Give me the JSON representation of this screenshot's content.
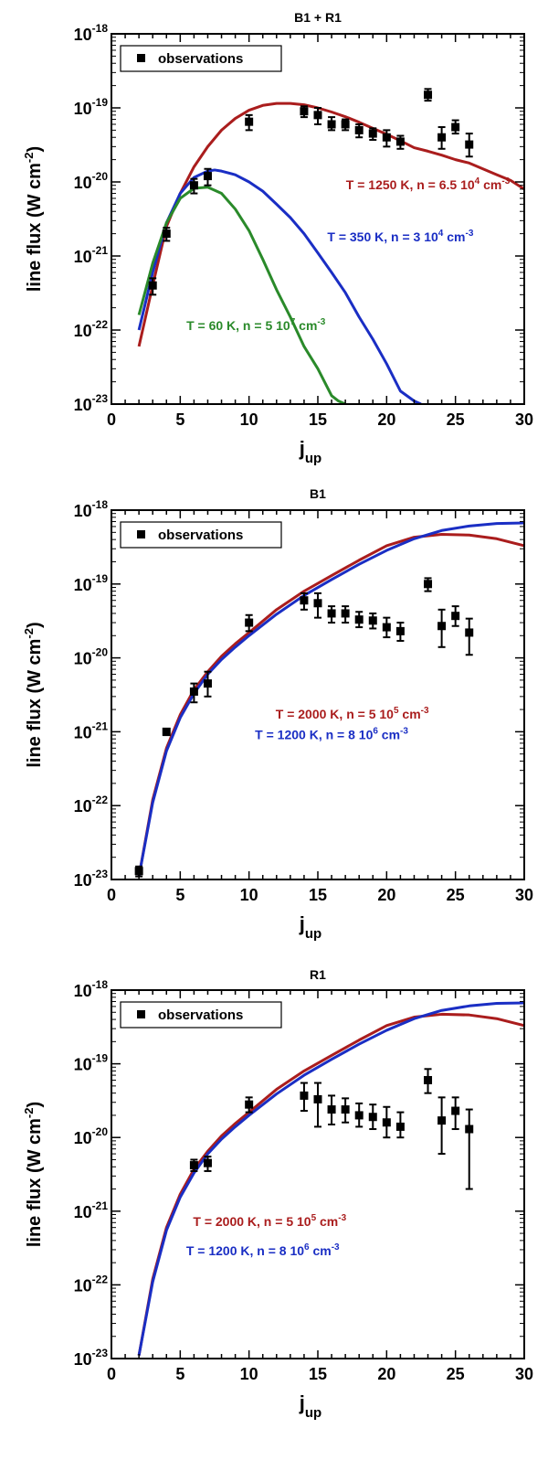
{
  "chart_data": [
    {
      "type": "line",
      "title": "B1 + R1",
      "xlabel": "j",
      "xlabel_sub": "up",
      "ylabel": "line flux (W cm",
      "ylabel_sup": "-2",
      "ylabel_end": ")",
      "xlim": [
        0,
        30
      ],
      "ylim_log10": [
        -23,
        -18
      ],
      "xticks": [
        "0",
        "5",
        "10",
        "15",
        "20",
        "25",
        "30"
      ],
      "ytick_mantissa": "10",
      "yticks": [
        "-18",
        "-19",
        "-20",
        "-21",
        "-22",
        "-23"
      ],
      "legend": {
        "label": "observations",
        "position": "top-left"
      },
      "observations": [
        {
          "x": 3,
          "y": 4e-22,
          "ylo": 3e-22,
          "yhi": 5e-22
        },
        {
          "x": 4,
          "y": 2e-21,
          "ylo": 1.6e-21,
          "yhi": 2.4e-21
        },
        {
          "x": 6,
          "y": 9e-21,
          "ylo": 7e-21,
          "yhi": 1.1e-20
        },
        {
          "x": 7,
          "y": 1.2e-20,
          "ylo": 9e-21,
          "yhi": 1.5e-20
        },
        {
          "x": 10,
          "y": 6.5e-20,
          "ylo": 5e-20,
          "yhi": 8e-20
        },
        {
          "x": 14,
          "y": 9e-20,
          "ylo": 7.5e-20,
          "yhi": 1.05e-19
        },
        {
          "x": 15,
          "y": 8e-20,
          "ylo": 6e-20,
          "yhi": 1e-19
        },
        {
          "x": 16,
          "y": 6e-20,
          "ylo": 5e-20,
          "yhi": 7.5e-20
        },
        {
          "x": 17,
          "y": 6e-20,
          "ylo": 5e-20,
          "yhi": 7e-20
        },
        {
          "x": 18,
          "y": 5e-20,
          "ylo": 4e-20,
          "yhi": 6e-20
        },
        {
          "x": 19,
          "y": 4.5e-20,
          "ylo": 3.7e-20,
          "yhi": 5.3e-20
        },
        {
          "x": 20,
          "y": 4e-20,
          "ylo": 3e-20,
          "yhi": 5e-20
        },
        {
          "x": 21,
          "y": 3.5e-20,
          "ylo": 2.8e-20,
          "yhi": 4.2e-20
        },
        {
          "x": 23,
          "y": 1.5e-19,
          "ylo": 1.25e-19,
          "yhi": 1.8e-19
        },
        {
          "x": 24,
          "y": 4e-20,
          "ylo": 2.8e-20,
          "yhi": 5.5e-20
        },
        {
          "x": 25,
          "y": 5.5e-20,
          "ylo": 4.5e-20,
          "yhi": 6.8e-20
        },
        {
          "x": 26,
          "y": 3.2e-20,
          "ylo": 2.2e-20,
          "yhi": 4.5e-20
        }
      ],
      "series": [
        {
          "name": "T = 1250 K, n = 6.5 10^4 cm^-3",
          "color": "#aa1d1d",
          "x": [
            2,
            3,
            4,
            5,
            6,
            7,
            8,
            9,
            10,
            11,
            12,
            13,
            14,
            15,
            16,
            17,
            18,
            19,
            20,
            21,
            22,
            23,
            24,
            25,
            26,
            27,
            28,
            29,
            30
          ],
          "y": [
            6e-23,
            4e-22,
            2.5e-21,
            7e-21,
            1.6e-20,
            3e-20,
            5e-20,
            7.2e-20,
            9.3e-20,
            1.08e-19,
            1.15e-19,
            1.15e-19,
            1.1e-19,
            1e-19,
            8.8e-20,
            7.6e-20,
            6.4e-20,
            5.3e-20,
            4.4e-20,
            3.6e-20,
            2.9e-20,
            2.6e-20,
            2.3e-20,
            2e-20,
            1.8e-20,
            1.5e-20,
            1.25e-20,
            1.05e-20,
            8e-21
          ]
        },
        {
          "name": "T = 350 K, n = 3 10^4 cm^-3",
          "color": "#1a2ec4",
          "x": [
            2,
            3,
            4,
            5,
            6,
            7,
            7.5,
            8,
            9,
            10,
            11,
            12,
            13,
            14,
            15,
            16,
            17,
            18,
            19,
            20,
            21,
            22,
            22.5
          ],
          "y": [
            1e-22,
            6e-22,
            2.8e-21,
            7e-21,
            1.15e-20,
            1.4e-20,
            1.45e-20,
            1.4e-20,
            1.25e-20,
            1e-20,
            7.5e-21,
            5e-21,
            3.3e-21,
            2e-21,
            1.1e-21,
            6e-22,
            3.2e-22,
            1.5e-22,
            7.5e-23,
            3.5e-23,
            1.5e-23,
            1.1e-23,
            1e-23
          ]
        },
        {
          "name": "T = 60 K, n = 5 10^7 cm^-3",
          "color": "#2a8a2a",
          "x": [
            2,
            3,
            4,
            5,
            6,
            7,
            8,
            9,
            10,
            11,
            12,
            13,
            14,
            15,
            16,
            16.5,
            17
          ],
          "y": [
            1.6e-22,
            8e-22,
            2.8e-21,
            6e-21,
            8.2e-21,
            8.5e-21,
            7e-21,
            4.3e-21,
            2.2e-21,
            9e-22,
            3.5e-22,
            1.5e-22,
            6e-23,
            3e-23,
            1.3e-23,
            1.1e-23,
            1e-23
          ]
        }
      ],
      "series_labels": [
        {
          "base": "T = 1250 K, n = 6.5 10",
          "exp1": "4",
          "mid": " cm",
          "exp2": "-3",
          "color": "#aa1d1d",
          "x": 23,
          "logy": -20.1
        },
        {
          "base": "T = 350 K, n = 3 10",
          "exp1": "4",
          "mid": " cm",
          "exp2": "-3",
          "color": "#1a2ec4",
          "x": 21,
          "logy": -20.8
        },
        {
          "base": "T = 60 K, n = 5 10",
          "exp1": "7",
          "mid": " cm",
          "exp2": "-3",
          "color": "#2a8a2a",
          "x": 10.5,
          "logy": -22.0
        }
      ]
    },
    {
      "type": "line",
      "title": "B1",
      "xlabel": "j",
      "xlabel_sub": "up",
      "ylabel": "line flux (W cm",
      "ylabel_sup": "-2",
      "ylabel_end": ")",
      "xlim": [
        0,
        30
      ],
      "ylim_log10": [
        -23,
        -18
      ],
      "xticks": [
        "0",
        "5",
        "10",
        "15",
        "20",
        "25",
        "30"
      ],
      "ytick_mantissa": "10",
      "yticks": [
        "-18",
        "-19",
        "-20",
        "-21",
        "-22",
        "-23"
      ],
      "legend": {
        "label": "observations",
        "position": "top-left"
      },
      "observations": [
        {
          "x": 2,
          "y": 1.3e-23,
          "ylo": 1.1e-23,
          "yhi": 1.5e-23
        },
        {
          "x": 4,
          "y": 1e-21,
          "ylo": 9e-22,
          "yhi": 1.1e-21
        },
        {
          "x": 6,
          "y": 3.5e-21,
          "ylo": 2.5e-21,
          "yhi": 4.5e-21
        },
        {
          "x": 7,
          "y": 4.5e-21,
          "ylo": 3e-21,
          "yhi": 6.5e-21
        },
        {
          "x": 10,
          "y": 3e-20,
          "ylo": 2.3e-20,
          "yhi": 3.8e-20
        },
        {
          "x": 14,
          "y": 6e-20,
          "ylo": 4.5e-20,
          "yhi": 7.5e-20
        },
        {
          "x": 15,
          "y": 5.5e-20,
          "ylo": 3.5e-20,
          "yhi": 7.5e-20
        },
        {
          "x": 16,
          "y": 4e-20,
          "ylo": 3e-20,
          "yhi": 5e-20
        },
        {
          "x": 17,
          "y": 4e-20,
          "ylo": 3e-20,
          "yhi": 5e-20
        },
        {
          "x": 18,
          "y": 3.3e-20,
          "ylo": 2.6e-20,
          "yhi": 4.2e-20
        },
        {
          "x": 19,
          "y": 3.2e-20,
          "ylo": 2.5e-20,
          "yhi": 4e-20
        },
        {
          "x": 20,
          "y": 2.6e-20,
          "ylo": 1.9e-20,
          "yhi": 3.5e-20
        },
        {
          "x": 21,
          "y": 2.3e-20,
          "ylo": 1.7e-20,
          "yhi": 3e-20
        },
        {
          "x": 23,
          "y": 1e-19,
          "ylo": 8e-20,
          "yhi": 1.2e-19
        },
        {
          "x": 24,
          "y": 2.7e-20,
          "ylo": 1.4e-20,
          "yhi": 4.5e-20
        },
        {
          "x": 25,
          "y": 3.7e-20,
          "ylo": 2.7e-20,
          "yhi": 5e-20
        },
        {
          "x": 26,
          "y": 2.2e-20,
          "ylo": 1.1e-20,
          "yhi": 3.4e-20
        }
      ],
      "series": [
        {
          "name": "T = 2000 K, n = 5 10^5 cm^-3",
          "color": "#aa1d1d",
          "x": [
            2,
            3,
            4,
            5,
            6,
            7,
            8,
            9,
            10,
            12,
            14,
            16,
            18,
            20,
            22,
            24,
            26,
            28,
            30
          ],
          "y": [
            1.1e-23,
            1.2e-22,
            6e-22,
            1.7e-21,
            3.7e-21,
            6.5e-21,
            1.05e-20,
            1.55e-20,
            2.2e-20,
            4.5e-20,
            8e-20,
            1.3e-19,
            2.1e-19,
            3.3e-19,
            4.3e-19,
            4.7e-19,
            4.6e-19,
            4.1e-19,
            3.3e-19
          ]
        },
        {
          "name": "T = 1200 K, n = 8 10^6 cm^-3",
          "color": "#1a2ec4",
          "x": [
            2,
            3,
            4,
            5,
            6,
            7,
            8,
            9,
            10,
            12,
            14,
            16,
            18,
            20,
            22,
            24,
            26,
            28,
            30
          ],
          "y": [
            1.1e-23,
            1.1e-22,
            5.5e-22,
            1.55e-21,
            3.3e-21,
            6e-21,
            9.5e-21,
            1.4e-20,
            2e-20,
            3.9e-20,
            7e-20,
            1.15e-19,
            1.85e-19,
            2.85e-19,
            4.1e-19,
            5.3e-19,
            6.1e-19,
            6.6e-19,
            6.7e-19
          ]
        }
      ],
      "series_labels": [
        {
          "base": "T = 2000 K, n = 5 10",
          "exp1": "5",
          "mid": " cm",
          "exp2": "-3",
          "color": "#aa1d1d",
          "x": 17.5,
          "logy": -20.82
        },
        {
          "base": "T = 1200 K, n = 8 10",
          "exp1": "6",
          "mid": " cm",
          "exp2": "-3",
          "color": "#1a2ec4",
          "x": 16,
          "logy": -21.1
        }
      ]
    },
    {
      "type": "line",
      "title": "R1",
      "xlabel": "j",
      "xlabel_sub": "up",
      "ylabel": "line flux (W cm",
      "ylabel_sup": "-2",
      "ylabel_end": ")",
      "xlim": [
        0,
        30
      ],
      "ylim_log10": [
        -23,
        -18
      ],
      "xticks": [
        "0",
        "5",
        "10",
        "15",
        "20",
        "25",
        "30"
      ],
      "ytick_mantissa": "10",
      "yticks": [
        "-18",
        "-19",
        "-20",
        "-21",
        "-22",
        "-23"
      ],
      "legend": {
        "label": "observations",
        "position": "top-left"
      },
      "observations": [
        {
          "x": 6,
          "y": 4.2e-21,
          "ylo": 3.5e-21,
          "yhi": 5e-21
        },
        {
          "x": 7,
          "y": 4.5e-21,
          "ylo": 3.5e-21,
          "yhi": 5.5e-21
        },
        {
          "x": 10,
          "y": 2.8e-20,
          "ylo": 2.2e-20,
          "yhi": 3.5e-20
        },
        {
          "x": 14,
          "y": 3.7e-20,
          "ylo": 2.3e-20,
          "yhi": 5.5e-20
        },
        {
          "x": 15,
          "y": 3.3e-20,
          "ylo": 1.4e-20,
          "yhi": 5.5e-20
        },
        {
          "x": 16,
          "y": 2.4e-20,
          "ylo": 1.5e-20,
          "yhi": 3.7e-20
        },
        {
          "x": 17,
          "y": 2.4e-20,
          "ylo": 1.6e-20,
          "yhi": 3.4e-20
        },
        {
          "x": 18,
          "y": 2e-20,
          "ylo": 1.4e-20,
          "yhi": 2.9e-20
        },
        {
          "x": 19,
          "y": 1.9e-20,
          "ylo": 1.3e-20,
          "yhi": 2.8e-20
        },
        {
          "x": 20,
          "y": 1.6e-20,
          "ylo": 1e-20,
          "yhi": 2.6e-20
        },
        {
          "x": 21,
          "y": 1.4e-20,
          "ylo": 1e-20,
          "yhi": 2.2e-20
        },
        {
          "x": 23,
          "y": 6e-20,
          "ylo": 4e-20,
          "yhi": 8.5e-20
        },
        {
          "x": 24,
          "y": 1.7e-20,
          "ylo": 6e-21,
          "yhi": 3.5e-20
        },
        {
          "x": 25,
          "y": 2.3e-20,
          "ylo": 1.3e-20,
          "yhi": 3.5e-20
        },
        {
          "x": 26,
          "y": 1.3e-20,
          "ylo": 2e-21,
          "yhi": 2.4e-20
        }
      ],
      "series": [
        {
          "name": "T = 2000 K, n = 5 10^5 cm^-3",
          "color": "#aa1d1d",
          "x": [
            2,
            3,
            4,
            5,
            6,
            7,
            8,
            9,
            10,
            12,
            14,
            16,
            18,
            20,
            22,
            24,
            26,
            28,
            30
          ],
          "y": [
            1.1e-23,
            1.2e-22,
            6e-22,
            1.7e-21,
            3.7e-21,
            6.5e-21,
            1.05e-20,
            1.55e-20,
            2.2e-20,
            4.5e-20,
            8e-20,
            1.3e-19,
            2.1e-19,
            3.3e-19,
            4.3e-19,
            4.7e-19,
            4.6e-19,
            4.1e-19,
            3.3e-19
          ]
        },
        {
          "name": "T = 1200 K, n = 8 10^6 cm^-3",
          "color": "#1a2ec4",
          "x": [
            2,
            3,
            4,
            5,
            6,
            7,
            8,
            9,
            10,
            12,
            14,
            16,
            18,
            20,
            22,
            24,
            26,
            28,
            30
          ],
          "y": [
            1.1e-23,
            1.1e-22,
            5.5e-22,
            1.55e-21,
            3.3e-21,
            6e-21,
            9.5e-21,
            1.4e-20,
            2e-20,
            3.9e-20,
            7e-20,
            1.15e-19,
            1.85e-19,
            2.85e-19,
            4.1e-19,
            5.3e-19,
            6.1e-19,
            6.6e-19,
            6.7e-19
          ]
        }
      ],
      "series_labels": [
        {
          "base": "T = 2000 K, n = 5 10",
          "exp1": "5",
          "mid": " cm",
          "exp2": "-3",
          "color": "#aa1d1d",
          "x": 11.5,
          "logy": -21.2
        },
        {
          "base": "T = 1200 K, n = 8 10",
          "exp1": "6",
          "mid": " cm",
          "exp2": "-3",
          "color": "#1a2ec4",
          "x": 11,
          "logy": -21.6
        }
      ]
    }
  ]
}
